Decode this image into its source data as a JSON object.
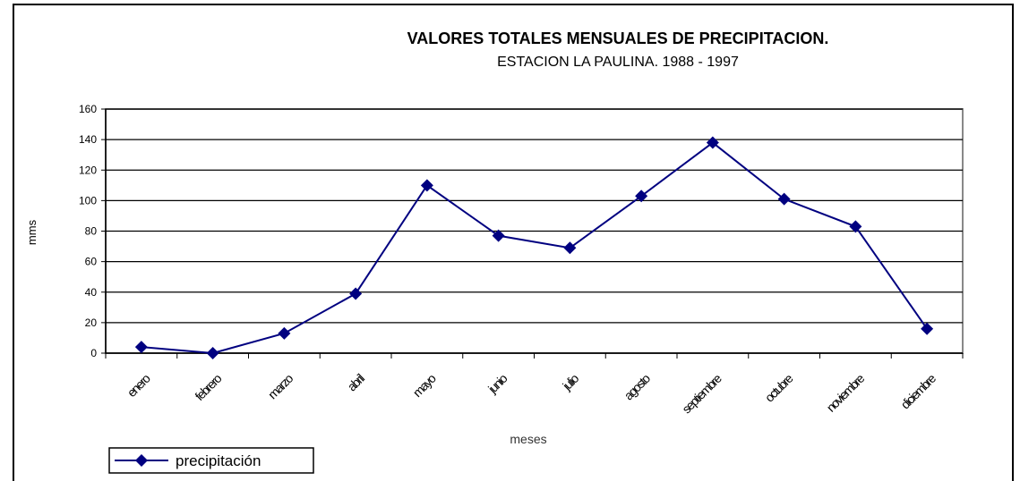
{
  "chart_data": {
    "type": "line",
    "title": "VALORES TOTALES MENSUALES DE PRECIPITACION.",
    "subtitle": "ESTACION LA PAULINA.  1988 - 1997",
    "y_label": "mms",
    "x_label": "meses",
    "categories": [
      "enero",
      "febrero",
      "marzo",
      "abril",
      "mayo",
      "junio",
      "julio",
      "agosto",
      "septiembre",
      "octubre",
      "noviembre",
      "diciembre"
    ],
    "series": [
      {
        "name": "precipitación",
        "color": "#000080",
        "values": [
          4,
          0,
          13,
          39,
          110,
          77,
          69,
          103,
          138,
          101,
          83,
          16
        ]
      }
    ],
    "ylim": [
      0,
      160
    ],
    "yticks": [
      0,
      20,
      40,
      60,
      80,
      100,
      120,
      140,
      160
    ],
    "grid": true,
    "legend": "bottom-left"
  }
}
